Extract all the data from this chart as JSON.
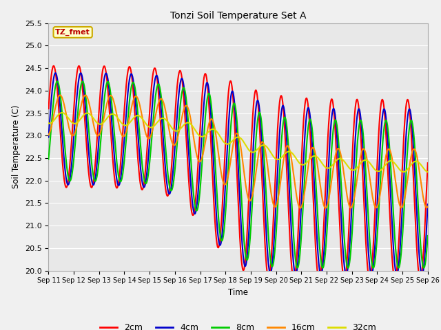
{
  "title": "Tonzi Soil Temperature Set A",
  "xlabel": "Time",
  "ylabel": "Soil Temperature (C)",
  "ylim": [
    20.0,
    25.5
  ],
  "yticks": [
    20.0,
    20.5,
    21.0,
    21.5,
    22.0,
    22.5,
    23.0,
    23.5,
    24.0,
    24.5,
    25.0,
    25.5
  ],
  "x_labels": [
    "Sep 11",
    "Sep 12",
    "Sep 13",
    "Sep 14",
    "Sep 15",
    "Sep 16",
    "Sep 17",
    "Sep 18",
    "Sep 19",
    "Sep 20",
    "Sep 21",
    "Sep 22",
    "Sep 23",
    "Sep 24",
    "Sep 25",
    "Sep 26"
  ],
  "colors": {
    "2cm": "#ff0000",
    "4cm": "#0000cc",
    "8cm": "#00cc00",
    "16cm": "#ff8800",
    "32cm": "#dddd00"
  },
  "annotation_text": "TZ_fmet",
  "annotation_bg": "#ffffcc",
  "annotation_border": "#ccaa00",
  "plot_bg": "#e8e8e8",
  "fig_bg": "#f0f0f0",
  "grid_color": "#ffffff",
  "linewidth": 1.5
}
